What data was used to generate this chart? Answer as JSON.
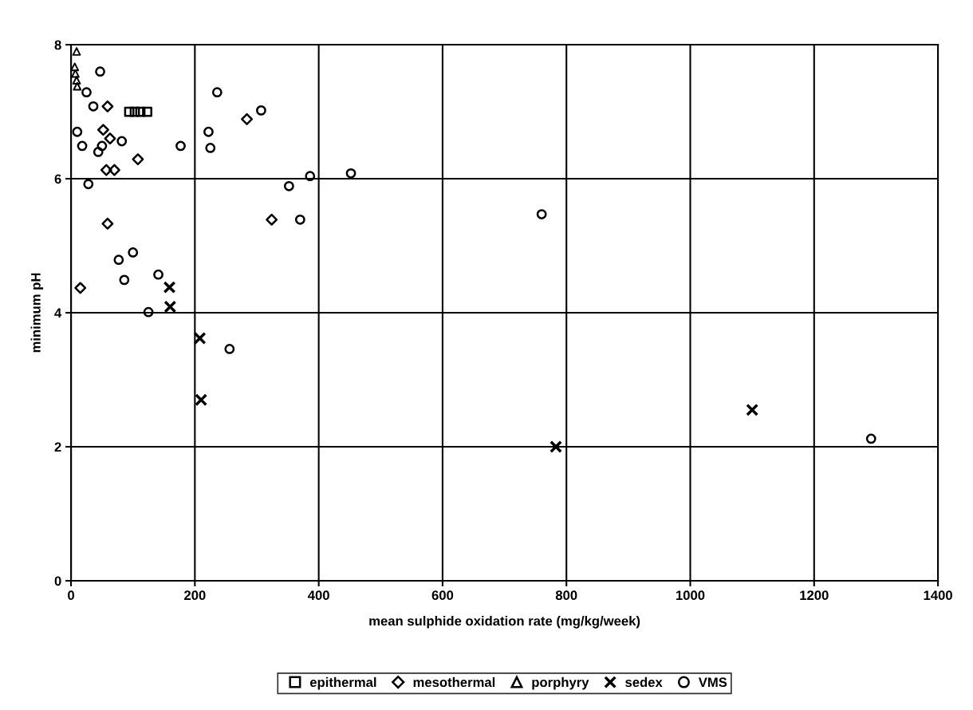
{
  "chart_data": {
    "type": "scatter",
    "xlabel": "mean sulphide oxidation rate (mg/kg/week)",
    "ylabel": "minimum pH",
    "xlim": [
      0,
      1400
    ],
    "xticks": [
      0,
      200,
      400,
      600,
      800,
      1000,
      1200,
      1400
    ],
    "ylim": [
      0,
      8
    ],
    "yticks": [
      0,
      2,
      4,
      6,
      8
    ],
    "grid": true,
    "legend": "bottom",
    "series": [
      {
        "name": "epithermal",
        "color": "#000000",
        "marker": "square",
        "x": [
          94,
          103,
          112,
          123
        ],
        "values": [
          7.0,
          7.0,
          7.0,
          7.0
        ]
      },
      {
        "name": "mesothermal",
        "color": "#000000",
        "marker": "diamond",
        "x": [
          59,
          52,
          63,
          108,
          57,
          70,
          59,
          15,
          284,
          324
        ],
        "values": [
          7.08,
          6.73,
          6.6,
          6.29,
          6.13,
          6.13,
          5.33,
          4.37,
          6.89,
          5.39
        ]
      },
      {
        "name": "porphyry",
        "color": "#000000",
        "marker": "triangle",
        "x": [
          9,
          6,
          7,
          9,
          10
        ],
        "values": [
          7.9,
          7.67,
          7.57,
          7.47,
          7.38
        ]
      },
      {
        "name": "sedex",
        "color": "#000000",
        "marker": "cross",
        "x": [
          159,
          160,
          208,
          210,
          783,
          1100
        ],
        "values": [
          4.38,
          4.09,
          3.62,
          2.7,
          2.0,
          2.55
        ]
      },
      {
        "name": "VMS",
        "color": "#000000",
        "marker": "circle",
        "x": [
          47,
          25,
          36,
          10,
          18,
          50,
          44,
          82,
          177,
          28,
          100,
          77,
          86,
          141,
          125,
          236,
          222,
          225,
          256,
          307,
          386,
          352,
          452,
          370,
          760,
          1292
        ],
        "values": [
          7.6,
          7.29,
          7.08,
          6.7,
          6.49,
          6.49,
          6.4,
          6.56,
          6.49,
          5.92,
          4.9,
          4.79,
          4.49,
          4.57,
          4.01,
          7.29,
          6.7,
          6.46,
          3.46,
          7.02,
          6.04,
          5.89,
          6.08,
          5.39,
          5.47,
          2.12
        ]
      }
    ]
  }
}
